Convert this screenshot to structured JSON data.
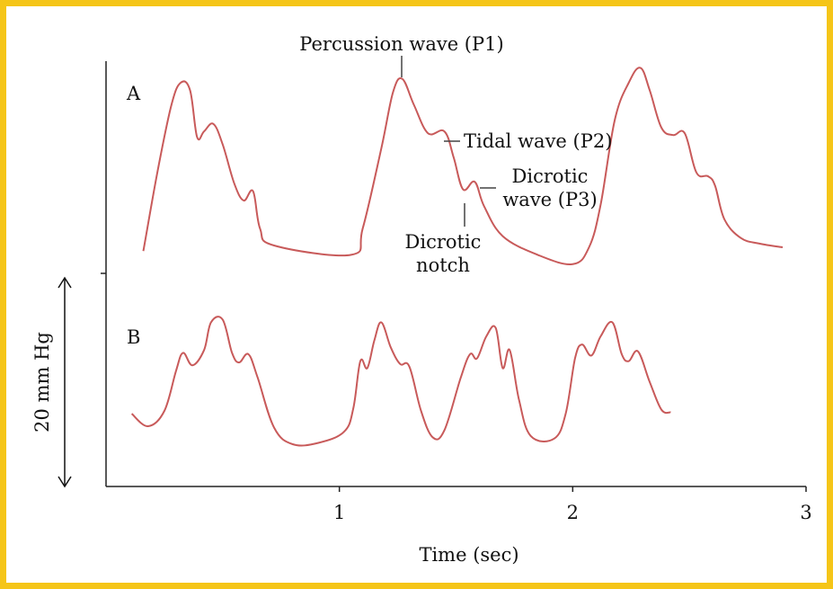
{
  "chart_data": {
    "type": "line",
    "xlabel": "Time (sec)",
    "ylabel": "20 mm Hg",
    "xlim": [
      0,
      3
    ],
    "x_ticks": [
      1,
      2,
      3
    ],
    "grid": false,
    "colors": {
      "waveform": "#c85a5a",
      "frame": "#f5c518",
      "axis": "#222222"
    },
    "series": [
      {
        "name": "A",
        "points": [
          [
            0.16,
            0.1
          ],
          [
            0.22,
            0.52
          ],
          [
            0.28,
            0.88
          ],
          [
            0.32,
            1.0
          ],
          [
            0.36,
            0.96
          ],
          [
            0.39,
            0.71
          ],
          [
            0.42,
            0.74
          ],
          [
            0.46,
            0.78
          ],
          [
            0.5,
            0.67
          ],
          [
            0.55,
            0.46
          ],
          [
            0.59,
            0.37
          ],
          [
            0.63,
            0.42
          ],
          [
            0.66,
            0.22
          ],
          [
            0.72,
            0.13
          ],
          [
            1.05,
            0.08
          ],
          [
            1.1,
            0.22
          ],
          [
            1.18,
            0.65
          ],
          [
            1.23,
            0.95
          ],
          [
            1.27,
            1.02
          ],
          [
            1.32,
            0.88
          ],
          [
            1.38,
            0.73
          ],
          [
            1.45,
            0.74
          ],
          [
            1.49,
            0.6
          ],
          [
            1.53,
            0.43
          ],
          [
            1.58,
            0.47
          ],
          [
            1.62,
            0.34
          ],
          [
            1.7,
            0.18
          ],
          [
            1.85,
            0.08
          ],
          [
            2.0,
            0.03
          ],
          [
            2.07,
            0.12
          ],
          [
            2.12,
            0.35
          ],
          [
            2.18,
            0.8
          ],
          [
            2.24,
            1.0
          ],
          [
            2.29,
            1.08
          ],
          [
            2.33,
            0.96
          ],
          [
            2.38,
            0.76
          ],
          [
            2.43,
            0.72
          ],
          [
            2.48,
            0.73
          ],
          [
            2.53,
            0.52
          ],
          [
            2.58,
            0.5
          ],
          [
            2.61,
            0.45
          ],
          [
            2.65,
            0.27
          ],
          [
            2.72,
            0.17
          ],
          [
            2.8,
            0.14
          ],
          [
            2.9,
            0.12
          ]
        ]
      },
      {
        "name": "B",
        "points": [
          [
            0.11,
            0.22
          ],
          [
            0.18,
            0.13
          ],
          [
            0.25,
            0.24
          ],
          [
            0.3,
            0.53
          ],
          [
            0.33,
            0.66
          ],
          [
            0.37,
            0.57
          ],
          [
            0.42,
            0.68
          ],
          [
            0.45,
            0.88
          ],
          [
            0.5,
            0.9
          ],
          [
            0.54,
            0.66
          ],
          [
            0.57,
            0.59
          ],
          [
            0.61,
            0.65
          ],
          [
            0.65,
            0.48
          ],
          [
            0.72,
            0.12
          ],
          [
            0.8,
            0.0
          ],
          [
            0.91,
            0.01
          ],
          [
            1.02,
            0.09
          ],
          [
            1.06,
            0.26
          ],
          [
            1.09,
            0.6
          ],
          [
            1.12,
            0.55
          ],
          [
            1.15,
            0.75
          ],
          [
            1.18,
            0.88
          ],
          [
            1.22,
            0.7
          ],
          [
            1.26,
            0.58
          ],
          [
            1.3,
            0.56
          ],
          [
            1.35,
            0.24
          ],
          [
            1.4,
            0.05
          ],
          [
            1.45,
            0.1
          ],
          [
            1.52,
            0.48
          ],
          [
            1.56,
            0.65
          ],
          [
            1.59,
            0.62
          ],
          [
            1.63,
            0.78
          ],
          [
            1.67,
            0.84
          ],
          [
            1.7,
            0.55
          ],
          [
            1.73,
            0.68
          ],
          [
            1.77,
            0.32
          ],
          [
            1.82,
            0.06
          ],
          [
            1.92,
            0.04
          ],
          [
            1.97,
            0.22
          ],
          [
            2.01,
            0.62
          ],
          [
            2.04,
            0.72
          ],
          [
            2.08,
            0.64
          ],
          [
            2.12,
            0.78
          ],
          [
            2.17,
            0.88
          ],
          [
            2.21,
            0.65
          ],
          [
            2.24,
            0.6
          ],
          [
            2.28,
            0.67
          ],
          [
            2.33,
            0.45
          ],
          [
            2.38,
            0.25
          ],
          [
            2.42,
            0.23
          ]
        ]
      }
    ],
    "annotations": [
      {
        "text": "Percussion wave (P1)",
        "x": 1.27
      },
      {
        "text": "Tidal wave (P2)",
        "x": 1.45
      },
      {
        "line1": "Dicrotic",
        "line2": "wave (P3)",
        "x": 1.58
      },
      {
        "line1": "Dicrotic",
        "line2": "notch",
        "x": 1.53
      }
    ]
  }
}
